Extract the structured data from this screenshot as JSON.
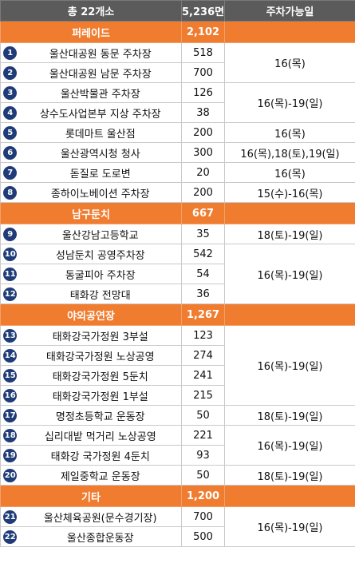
{
  "colors": {
    "header_bg": "#5b5b5b",
    "category_bg": "#f07c30",
    "badge_bg": "#1f3c78"
  },
  "header": {
    "total": "총 22개소",
    "capacity": "5,236면",
    "availability": "주차가능일"
  },
  "categories": [
    {
      "name": "퍼레이드",
      "total": "2,102",
      "rows": [
        {
          "no": "1",
          "name": "울산대공원 동문 주차장",
          "count": "518",
          "avail": "16(목)",
          "span": 2
        },
        {
          "no": "2",
          "name": "울산대공원 남문 주차장",
          "count": "700"
        },
        {
          "no": "3",
          "name": "울산박물관 주차장",
          "count": "126",
          "avail": "16(목)-19(일)",
          "span": 2
        },
        {
          "no": "4",
          "name": "상수도사업본부 지상 주차장",
          "count": "38"
        },
        {
          "no": "5",
          "name": "롯데마트 울산점",
          "count": "200",
          "avail": "16(목)",
          "span": 1
        },
        {
          "no": "6",
          "name": "울산광역시청 청사",
          "count": "300",
          "avail": "16(목),18(토),19(일)",
          "span": 1
        },
        {
          "no": "7",
          "name": "돋질로 도로변",
          "count": "20",
          "avail": "16(목)",
          "span": 1
        },
        {
          "no": "8",
          "name": "종하이노베이션 주차장",
          "count": "200",
          "avail": "15(수)-16(목)",
          "span": 1
        }
      ]
    },
    {
      "name": "남구둔치",
      "total": "667",
      "rows": [
        {
          "no": "9",
          "name": "울산강남고등학교",
          "count": "35",
          "avail": "18(토)-19(일)",
          "span": 1
        },
        {
          "no": "10",
          "name": "성남둔치 공영주차장",
          "count": "542",
          "avail": "16(목)-19(일)",
          "span": 3
        },
        {
          "no": "11",
          "name": "동굴피아 주차장",
          "count": "54"
        },
        {
          "no": "12",
          "name": "태화강 전망대",
          "count": "36"
        }
      ]
    },
    {
      "name": "야외공연장",
      "total": "1,267",
      "rows": [
        {
          "no": "13",
          "name": "태화강국가정원 3부설",
          "count": "123",
          "avail": "16(목)-19(일)",
          "span": 4
        },
        {
          "no": "14",
          "name": "태화강국가정원 노상공영",
          "count": "274"
        },
        {
          "no": "15",
          "name": "태화강국가정원 5둔치",
          "count": "241"
        },
        {
          "no": "16",
          "name": "태화강국가정원 1부설",
          "count": "215"
        },
        {
          "no": "17",
          "name": "명정초등학교 운동장",
          "count": "50",
          "avail": "18(토)-19(일)",
          "span": 1
        },
        {
          "no": "18",
          "name": "십리대밭 먹거리 노상공영",
          "count": "221",
          "avail": "16(목)-19(일)",
          "span": 2
        },
        {
          "no": "19",
          "name": "태화강 국가정원 4둔치",
          "count": "93"
        },
        {
          "no": "20",
          "name": "제일중학교 운동장",
          "count": "50",
          "avail": "18(토)-19(일)",
          "span": 1
        }
      ]
    },
    {
      "name": "기타",
      "total": "1,200",
      "rows": [
        {
          "no": "21",
          "name": "울산체육공원(문수경기장)",
          "count": "700",
          "avail": "16(목)-19(일)",
          "span": 2
        },
        {
          "no": "22",
          "name": "울산종합운동장",
          "count": "500"
        }
      ]
    }
  ]
}
